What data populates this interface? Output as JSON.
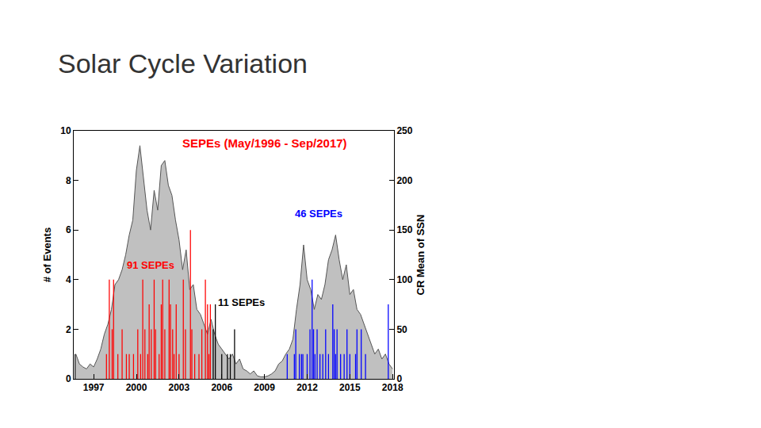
{
  "slide": {
    "title": "Solar Cycle Variation"
  },
  "chart_data": {
    "type": "bar",
    "title": "SEPEs (May/1996 - Sep/2017)",
    "y_label": "# of Events",
    "y2_label": "CR Mean of SSN",
    "xlim": [
      1995.6,
      2018.1
    ],
    "xticks": [
      1997,
      2000,
      2003,
      2006,
      2009,
      2012,
      2015,
      2018
    ],
    "ylim": [
      0,
      10
    ],
    "yticks": [
      0,
      2,
      4,
      6,
      8,
      10
    ],
    "y2lim": [
      0,
      250
    ],
    "y2ticks": [
      0,
      50,
      100,
      150,
      200,
      250
    ],
    "grid": false,
    "series": [
      {
        "name": "CR Mean of SSN",
        "type": "area",
        "axis": "y2",
        "color": "#c0c0c0",
        "x": [
          1995.75,
          1996.0,
          1996.25,
          1996.5,
          1996.75,
          1997.0,
          1997.25,
          1997.5,
          1997.75,
          1998.0,
          1998.25,
          1998.5,
          1998.75,
          1999.0,
          1999.25,
          1999.5,
          1999.75,
          2000.0,
          2000.25,
          2000.5,
          2000.75,
          2001.0,
          2001.25,
          2001.5,
          2001.75,
          2002.0,
          2002.25,
          2002.5,
          2002.75,
          2003.0,
          2003.25,
          2003.5,
          2003.75,
          2004.0,
          2004.25,
          2004.5,
          2004.75,
          2005.0,
          2005.25,
          2005.5,
          2005.75,
          2006.0,
          2006.25,
          2006.5,
          2006.75,
          2007.0,
          2007.25,
          2007.5,
          2007.75,
          2008.0,
          2008.25,
          2008.5,
          2008.75,
          2009.0,
          2009.25,
          2009.5,
          2009.75,
          2010.0,
          2010.25,
          2010.5,
          2010.75,
          2011.0,
          2011.25,
          2011.5,
          2011.75,
          2012.0,
          2012.25,
          2012.5,
          2012.75,
          2013.0,
          2013.25,
          2013.5,
          2013.75,
          2014.0,
          2014.25,
          2014.5,
          2014.75,
          2015.0,
          2015.25,
          2015.5,
          2015.75,
          2016.0,
          2016.25,
          2016.5,
          2016.75,
          2017.0,
          2017.25,
          2017.5,
          2017.75,
          2018.0
        ],
        "values": [
          25,
          15,
          12,
          10,
          15,
          12,
          20,
          30,
          45,
          55,
          70,
          95,
          100,
          110,
          125,
          145,
          160,
          210,
          235,
          200,
          170,
          150,
          190,
          170,
          215,
          220,
          195,
          185,
          160,
          140,
          110,
          130,
          90,
          95,
          70,
          65,
          55,
          45,
          60,
          45,
          35,
          30,
          25,
          20,
          25,
          15,
          20,
          10,
          8,
          5,
          8,
          3,
          2,
          2,
          3,
          5,
          8,
          15,
          18,
          25,
          30,
          40,
          70,
          95,
          135,
          100,
          90,
          70,
          85,
          80,
          95,
          120,
          130,
          145,
          120,
          100,
          115,
          85,
          90,
          70,
          65,
          55,
          45,
          35,
          25,
          30,
          20,
          25,
          15,
          10
        ]
      },
      {
        "name": "91 SEPEs",
        "type": "bar",
        "color": "#ff0000",
        "x": [
          1997.9,
          1998.1,
          1998.3,
          1998.4,
          1998.7,
          1999.0,
          1999.3,
          1999.5,
          1999.8,
          2000.1,
          2000.3,
          2000.45,
          2000.6,
          2000.8,
          2000.9,
          2001.05,
          2001.25,
          2001.35,
          2001.6,
          2001.75,
          2001.85,
          2002.0,
          2002.3,
          2002.4,
          2002.55,
          2002.65,
          2002.8,
          2003.0,
          2003.3,
          2003.45,
          2003.8,
          2003.9,
          2004.1,
          2004.4,
          2004.6,
          2004.85,
          2005.0,
          2005.1,
          2005.2
        ],
        "values": [
          1,
          4,
          2,
          4,
          1,
          2,
          1,
          1,
          1,
          2,
          1,
          4,
          2,
          1,
          3,
          2,
          4,
          2,
          1,
          3,
          4,
          2,
          4,
          3,
          2,
          1,
          3,
          1,
          4,
          2,
          6,
          2,
          1,
          1,
          2,
          4,
          3,
          1,
          3
        ]
      },
      {
        "name": "11 SEPEs",
        "type": "bar",
        "color": "#000000",
        "x": [
          1995.7,
          2005.4,
          2005.55,
          2006.0,
          2006.4,
          2006.6,
          2006.9
        ],
        "values": [
          1,
          2,
          3,
          1,
          1,
          1,
          2
        ]
      },
      {
        "name": "46 SEPEs",
        "type": "bar",
        "color": "#0000ff",
        "x": [
          2010.6,
          2011.1,
          2011.2,
          2011.45,
          2011.6,
          2011.7,
          2012.0,
          2012.2,
          2012.35,
          2012.45,
          2012.55,
          2012.7,
          2012.9,
          2013.1,
          2013.3,
          2013.5,
          2013.8,
          2013.9,
          2014.0,
          2014.1,
          2014.35,
          2014.6,
          2014.8,
          2015.0,
          2015.4,
          2015.5,
          2015.8,
          2016.1,
          2017.7
        ],
        "values": [
          1,
          1,
          2,
          1,
          1,
          1,
          1,
          2,
          4,
          2,
          1,
          2,
          1,
          1,
          2,
          1,
          3,
          2,
          1,
          2,
          1,
          1,
          2,
          1,
          1,
          2,
          2,
          1,
          3
        ]
      }
    ]
  }
}
